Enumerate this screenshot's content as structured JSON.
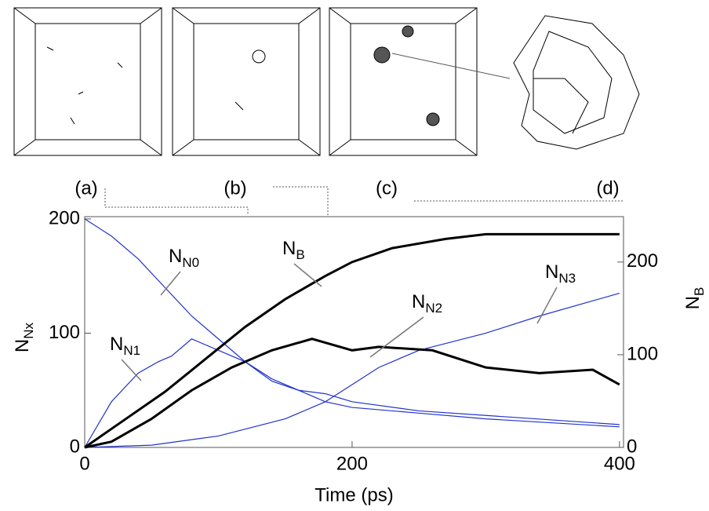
{
  "chart_data": {
    "type": "line",
    "x_label": "Time (ps)",
    "y_label": {
      "base": "N",
      "sub": "Nx"
    },
    "y2_label": {
      "base": "N",
      "sub": "B"
    },
    "panel_labels": [
      "(a)",
      "(b)",
      "(c)",
      "(d)"
    ],
    "xlim": [
      0,
      403
    ],
    "xticks": [
      0,
      200,
      400
    ],
    "ylim": [
      0,
      202
    ],
    "yticks": [
      0,
      100,
      200
    ],
    "y2lim": [
      0,
      249
    ],
    "y2ticks": [
      0,
      100,
      200
    ],
    "series": [
      {
        "color": "#2233cc",
        "x": [
          0,
          20,
          40,
          60,
          80,
          100,
          120,
          140,
          160,
          180,
          200,
          250,
          300,
          350,
          400
        ],
        "values": [
          200,
          185,
          165,
          140,
          115,
          95,
          75,
          58,
          50,
          47,
          40,
          32,
          28,
          24,
          20
        ]
      },
      {
        "color": "#2233cc",
        "x": [
          0,
          20,
          40,
          55,
          65,
          80,
          100,
          120,
          140,
          160,
          180,
          200,
          250,
          300,
          400
        ],
        "values": [
          0,
          40,
          65,
          75,
          80,
          95,
          85,
          75,
          60,
          50,
          40,
          35,
          30,
          25,
          18
        ]
      },
      {
        "color": "#2233cc",
        "x": [
          0,
          50,
          100,
          150,
          180,
          200,
          220,
          250,
          300,
          340,
          400
        ],
        "values": [
          0,
          2,
          10,
          25,
          40,
          55,
          70,
          85,
          100,
          115,
          135
        ]
      },
      {
        "color": "#000000",
        "x": [
          0,
          20,
          50,
          80,
          110,
          140,
          170,
          200,
          220,
          260,
          300,
          340,
          380,
          400
        ],
        "values": [
          0,
          5,
          25,
          50,
          70,
          85,
          95,
          85,
          88,
          85,
          70,
          65,
          68,
          55
        ]
      },
      {
        "color": "#000000",
        "axis": "y2",
        "x": [
          0,
          30,
          60,
          90,
          120,
          150,
          180,
          200,
          230,
          270,
          300,
          350,
          400
        ],
        "values": [
          0,
          30,
          60,
          95,
          130,
          160,
          185,
          200,
          215,
          225,
          230,
          230,
          230
        ]
      }
    ],
    "annotations": [
      {
        "base": "N",
        "sub": "N0"
      },
      {
        "base": "N",
        "sub": "N1"
      },
      {
        "base": "N",
        "sub": "B"
      },
      {
        "base": "N",
        "sub": "N2"
      },
      {
        "base": "N",
        "sub": "N3"
      }
    ]
  }
}
